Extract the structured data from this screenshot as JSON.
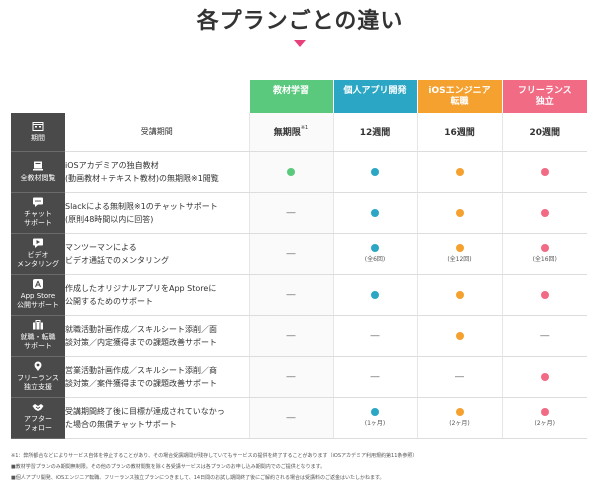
{
  "title": "各プランごとの違い",
  "colors": {
    "kyozai": "#5ac97d",
    "kojin": "#2ba7c5",
    "ios": "#f5a130",
    "free": "#f26b85",
    "category_bg": "#4a4a4a",
    "accent": "#e8407a"
  },
  "plans": [
    {
      "name": "教材学習",
      "line2": ""
    },
    {
      "name": "個人アプリ開発",
      "line2": ""
    },
    {
      "name": "iOSエンジニア",
      "line2": "転職"
    },
    {
      "name": "フリーランス",
      "line2": "独立"
    }
  ],
  "rows": [
    {
      "category": "期間",
      "cat2": "",
      "icon": "calendar-icon",
      "desc": "受講期間",
      "desc2": "",
      "cells": [
        {
          "text": "無期限",
          "sup": "※1"
        },
        {
          "text": "12週間"
        },
        {
          "text": "16週間"
        },
        {
          "text": "20週間"
        }
      ]
    },
    {
      "category": "全教材閲覧",
      "cat2": "",
      "icon": "book-icon",
      "desc": "iOSアカデミアの独自教材",
      "desc2": "(動画教材＋テキスト教材)の無期限※1閲覧",
      "cells": [
        {
          "mark": "dot",
          "color": "#5ac97d"
        },
        {
          "mark": "dot",
          "color": "#2ba7c5"
        },
        {
          "mark": "dot",
          "color": "#f5a130"
        },
        {
          "mark": "dot",
          "color": "#f26b85"
        }
      ]
    },
    {
      "category": "チャット",
      "cat2": "サポート",
      "icon": "chat-icon",
      "desc": "Slackによる無制限※1のチャットサポート",
      "desc2": "(原則48時間以内に回答)",
      "cells": [
        {
          "mark": "dash",
          "text": "―"
        },
        {
          "mark": "dot",
          "color": "#2ba7c5"
        },
        {
          "mark": "dot",
          "color": "#f5a130"
        },
        {
          "mark": "dot",
          "color": "#f26b85"
        }
      ]
    },
    {
      "category": "ビデオ",
      "cat2": "メンタリング",
      "icon": "video-icon",
      "desc": "マンツーマンによる",
      "desc2": "ビデオ通話でのメンタリング",
      "cells": [
        {
          "mark": "dash",
          "text": "―"
        },
        {
          "mark": "dot",
          "color": "#2ba7c5",
          "note": "(全6回)"
        },
        {
          "mark": "dot",
          "color": "#f5a130",
          "note": "(全12回)"
        },
        {
          "mark": "dot",
          "color": "#f26b85",
          "note": "(全16回)"
        }
      ]
    },
    {
      "category": "App Store",
      "cat2": "公開サポート",
      "icon": "appstore-icon",
      "desc": "作成したオリジナルアプリをApp Storeに",
      "desc2": "公開するためのサポート",
      "cells": [
        {
          "mark": "dash",
          "text": "―"
        },
        {
          "mark": "dot",
          "color": "#2ba7c5"
        },
        {
          "mark": "dot",
          "color": "#f5a130"
        },
        {
          "mark": "dot",
          "color": "#f26b85"
        }
      ]
    },
    {
      "category": "就職・転職",
      "cat2": "サポート",
      "icon": "briefcase-icon",
      "desc": "就職活動計画作成／スキルシート添削／面",
      "desc2": "談対策／内定獲得までの課題改善サポート",
      "cells": [
        {
          "mark": "dash",
          "text": "―"
        },
        {
          "mark": "dash",
          "text": "―"
        },
        {
          "mark": "dot",
          "color": "#f5a130"
        },
        {
          "mark": "dash",
          "text": "―"
        }
      ]
    },
    {
      "category": "フリーランス",
      "cat2": "独立支援",
      "icon": "pin-icon",
      "desc": "営業活動計画作成／スキルシート添削／商",
      "desc2": "談対策／案件獲得までの課題改善サポート",
      "cells": [
        {
          "mark": "dash",
          "text": "―"
        },
        {
          "mark": "dash",
          "text": "―"
        },
        {
          "mark": "dash",
          "text": "―"
        },
        {
          "mark": "dot",
          "color": "#f26b85"
        }
      ]
    },
    {
      "category": "アフター",
      "cat2": "フォロー",
      "icon": "handshake-icon",
      "desc": "受講期間終了後に目標が達成されていなかっ",
      "desc2": "た場合の無償チャットサポート",
      "cells": [
        {
          "mark": "dash",
          "text": "―"
        },
        {
          "mark": "dot",
          "color": "#2ba7c5",
          "note": "(1ヶ月)"
        },
        {
          "mark": "dot",
          "color": "#f5a130",
          "note": "(2ヶ月)"
        },
        {
          "mark": "dot",
          "color": "#f26b85",
          "note": "(2ヶ月)"
        }
      ]
    }
  ],
  "footnotes": [
    "※1：弊所都合などによりサービス自体を停止することがあり、その場合受講期間が残存していてもサービスの提供を終了することがあります（iOSアカデミア利用規約第11条参照）",
    "■教材学習プランのみ期間無制限。その他のプランの教材閲覧を除く各受講サービスは各プランのお申し込み期間内でのご提供となります。",
    "■個人アプリ開発、iOSエンジニア転職、フリーランス独立プランにつきまして、14日間のお試し期間終了後にご解約される場合は受講料のご返金はいたしかねます。"
  ]
}
